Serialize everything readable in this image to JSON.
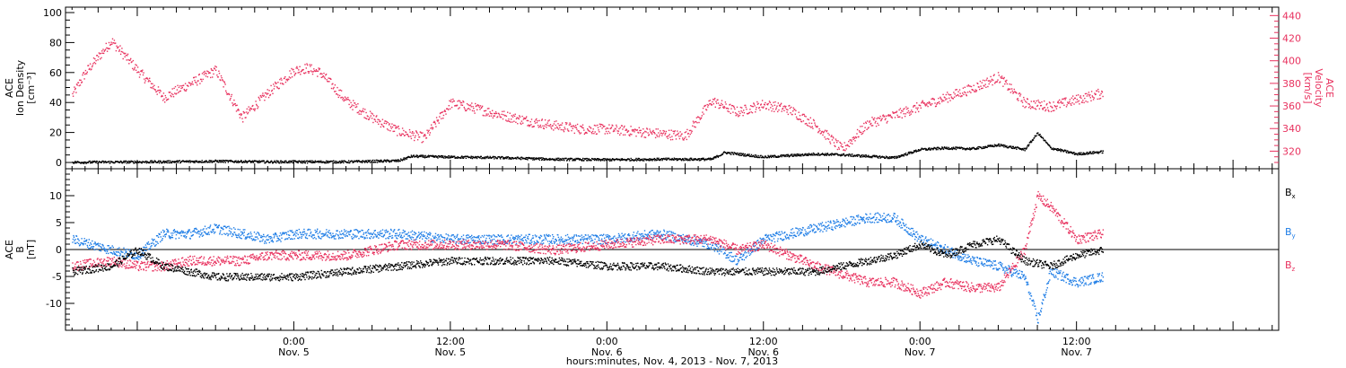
{
  "chart_data": [
    {
      "type": "scatter",
      "panel": "plasma",
      "ylabel_left": [
        "ACE",
        "Ion Density",
        "[cm⁻³]"
      ],
      "ylabel_right": [
        "ACE",
        "Velocity",
        "[km/s]"
      ],
      "ylim_left": [
        0,
        100
      ],
      "ylim_right": [
        310,
        440
      ],
      "yticks_left": [
        "0",
        "20",
        "40",
        "60",
        "80",
        "100"
      ],
      "yticks_right": [
        "320",
        "340",
        "360",
        "380",
        "400",
        "420",
        "440"
      ],
      "series": [
        {
          "color": "#e8325f",
          "axis": "right",
          "x": [
            -17,
            -16,
            -14,
            -12,
            -10,
            -8,
            -6,
            -4,
            -2,
            0,
            1,
            2,
            4,
            6,
            8,
            10,
            12,
            14,
            16,
            18,
            20,
            22,
            24,
            26,
            28,
            30,
            32,
            34,
            36,
            38,
            40,
            42,
            44,
            46,
            48,
            50,
            52,
            54,
            56,
            58,
            60,
            62
          ],
          "y": [
            370,
            390,
            418,
            392,
            368,
            380,
            392,
            350,
            372,
            392,
            394,
            390,
            365,
            350,
            338,
            332,
            363,
            358,
            352,
            347,
            343,
            340,
            340,
            338,
            336,
            334,
            365,
            355,
            362,
            357,
            343,
            322,
            345,
            352,
            360,
            368,
            376,
            386,
            363,
            360,
            366,
            372
          ]
        },
        {
          "color": "#000000",
          "axis": "left",
          "x": [
            -17,
            -10,
            -6,
            -4,
            -2,
            0,
            4,
            8,
            9,
            12,
            16,
            20,
            24,
            28,
            32,
            33,
            36,
            40,
            42,
            44,
            46,
            48,
            50,
            52,
            54,
            56,
            57,
            58,
            60,
            62
          ],
          "y": [
            0.5,
            0.8,
            1.2,
            1.0,
            0.8,
            0.8,
            0.8,
            1.5,
            4.5,
            4.0,
            3.5,
            2.5,
            2.2,
            2.5,
            2.5,
            7.0,
            4.0,
            6.0,
            5.5,
            4.5,
            3.5,
            9.0,
            10.0,
            9.5,
            12.0,
            9.0,
            20.0,
            10.0,
            6.0,
            7.5
          ]
        }
      ]
    },
    {
      "type": "scatter",
      "panel": "magnetic field",
      "ylabel_left": [
        "ACE",
        "B",
        "[nT]"
      ],
      "ylim": [
        -15,
        15
      ],
      "yticks": [
        "-10",
        "-5",
        "0",
        "5",
        "10"
      ],
      "legend_position": "right",
      "series": [
        {
          "name": "Bx",
          "color": "#000000",
          "x": [
            -17,
            -14,
            -12,
            -10,
            -8,
            -6,
            -4,
            -2,
            0,
            4,
            8,
            12,
            16,
            20,
            24,
            28,
            32,
            34,
            36,
            40,
            44,
            46,
            48,
            50,
            52,
            54,
            56,
            58,
            60,
            62
          ],
          "y": [
            -4,
            -3,
            0,
            -3,
            -4,
            -5,
            -5,
            -5,
            -5,
            -4,
            -3,
            -2,
            -2,
            -2,
            -3,
            -3,
            -4,
            -4,
            -4,
            -4,
            -2,
            -1,
            1,
            -1,
            1,
            2,
            -2,
            -3,
            -1,
            0
          ]
        },
        {
          "name": "By",
          "color": "#1e7de6",
          "x": [
            -17,
            -14,
            -12,
            -10,
            -8,
            -6,
            -4,
            -2,
            0,
            4,
            8,
            12,
            16,
            20,
            24,
            28,
            32,
            34,
            36,
            40,
            44,
            46,
            48,
            50,
            52,
            54,
            56,
            57,
            58,
            60,
            62
          ],
          "y": [
            2,
            0,
            -1,
            3,
            3,
            4,
            3,
            2,
            3,
            3,
            3,
            2,
            2,
            2,
            2,
            3,
            1,
            -2,
            2,
            4,
            6,
            6,
            2,
            0,
            -2,
            -3,
            -5,
            -13,
            -4,
            -6,
            -5
          ]
        },
        {
          "name": "Bz",
          "color": "#e8325f",
          "x": [
            -17,
            -14,
            -12,
            -10,
            -8,
            -6,
            -4,
            -2,
            0,
            4,
            8,
            12,
            16,
            20,
            24,
            28,
            32,
            34,
            36,
            40,
            44,
            46,
            48,
            50,
            52,
            54,
            56,
            57,
            58,
            60,
            62
          ],
          "y": [
            -3,
            -2,
            -3,
            -3,
            -2,
            -2,
            -2,
            -1,
            -1,
            -1,
            1,
            1,
            1,
            0,
            1,
            2,
            2,
            0,
            1,
            -3,
            -6,
            -6,
            -8,
            -6,
            -7,
            -7,
            0,
            10,
            8,
            2,
            3
          ]
        }
      ]
    }
  ],
  "axis": {
    "xlim_hours": [
      -17.5,
      75.5
    ],
    "tick_labels": [
      {
        "time": "0:00",
        "date": "Nov. 5"
      },
      {
        "time": "12:00",
        "date": "Nov. 5"
      },
      {
        "time": "0:00",
        "date": "Nov. 6"
      },
      {
        "time": "12:00",
        "date": "Nov. 6"
      },
      {
        "time": "0:00",
        "date": "Nov. 7"
      },
      {
        "time": "12:00",
        "date": "Nov. 7"
      }
    ],
    "tick_hours": [
      0,
      12,
      24,
      36,
      48,
      60
    ],
    "xlabel": "hours:minutes, Nov.  4, 2013 - Nov.  7, 2013"
  },
  "legend": {
    "bx": {
      "base": "B",
      "sub": "x"
    },
    "by": {
      "base": "B",
      "sub": "y"
    },
    "bz": {
      "base": "B",
      "sub": "z"
    }
  }
}
